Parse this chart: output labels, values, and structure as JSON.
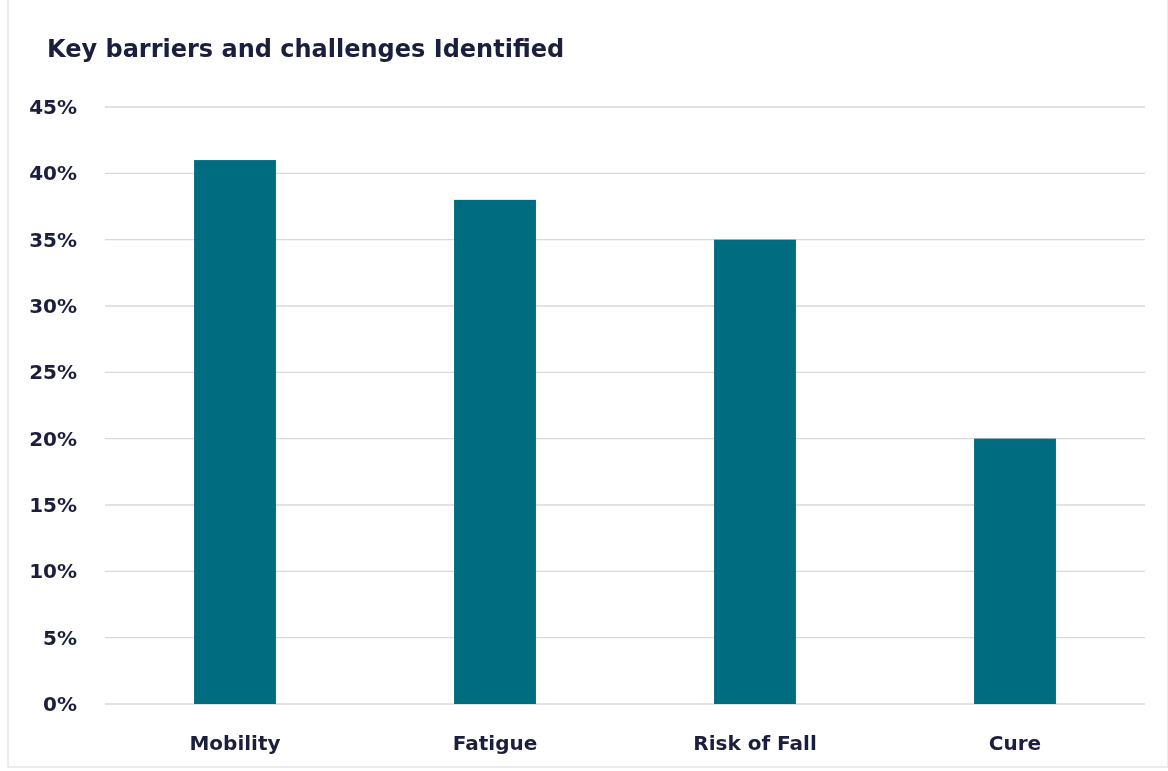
{
  "chart_data": {
    "type": "bar",
    "title": "Key barriers and challenges Identified",
    "categories": [
      "Mobility",
      "Fatigue",
      "Risk of Fall",
      "Cure"
    ],
    "values": [
      41,
      38,
      35,
      20
    ],
    "color": "#006c80",
    "ylim": [
      0,
      45
    ],
    "yticks": [
      {
        "value": 0,
        "label": "0%"
      },
      {
        "value": 5,
        "label": "5%"
      },
      {
        "value": 10,
        "label": "10%"
      },
      {
        "value": 15,
        "label": "15%"
      },
      {
        "value": 20,
        "label": "20%"
      },
      {
        "value": 25,
        "label": "25%"
      },
      {
        "value": 30,
        "label": "30%"
      },
      {
        "value": 35,
        "label": "35%"
      },
      {
        "value": 40,
        "label": "40%"
      },
      {
        "value": 45,
        "label": "45%"
      }
    ],
    "grid": "y"
  }
}
